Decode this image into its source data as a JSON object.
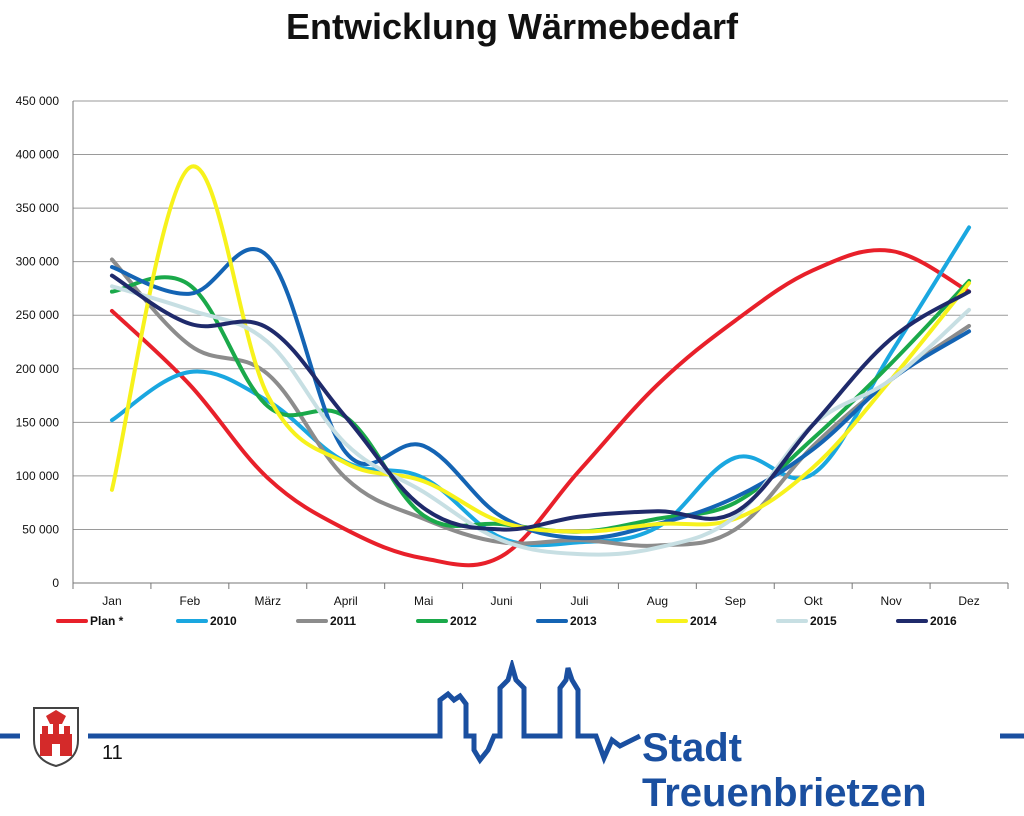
{
  "page": {
    "title": "Entwicklung Wärmebedarf",
    "page_number": "11",
    "brand": "Stadt Treuenbrietzen"
  },
  "colors": {
    "brand_blue": "#1a4fa0",
    "grid": "#9a9a9a"
  },
  "icons": {
    "logo": "coat-of-arms-icon",
    "skyline": "town-skyline-icon"
  },
  "chart_data": {
    "type": "line",
    "title": "",
    "xlabel": "",
    "ylabel": "",
    "ylim": [
      0,
      450000
    ],
    "yticks": [
      0,
      50000,
      100000,
      150000,
      200000,
      250000,
      300000,
      350000,
      400000,
      450000
    ],
    "ytick_labels": [
      "0",
      "50 000",
      "100 000",
      "150 000",
      "200 000",
      "250 000",
      "300 000",
      "350 000",
      "400 000",
      "450 000"
    ],
    "grid": true,
    "legend_position": "bottom",
    "categories": [
      "Jan",
      "Feb",
      "März",
      "April",
      "Mai",
      "Juni",
      "Juli",
      "Aug",
      "Sep",
      "Okt",
      "Nov",
      "Dez"
    ],
    "series": [
      {
        "name": "Plan *",
        "color": "#e8202a",
        "values": [
          254000,
          185000,
          98000,
          50000,
          23000,
          25000,
          105000,
          185000,
          245000,
          292000,
          310000,
          272000
        ]
      },
      {
        "name": "2010",
        "color": "#1aa7e0",
        "values": [
          152000,
          197000,
          170000,
          113000,
          98000,
          42000,
          38000,
          52000,
          117000,
          102000,
          215000,
          332000
        ]
      },
      {
        "name": "2011",
        "color": "#8c8c8c",
        "values": [
          302000,
          222000,
          195000,
          98000,
          60000,
          38000,
          40000,
          35000,
          50000,
          128000,
          190000,
          240000
        ]
      },
      {
        "name": "2012",
        "color": "#1aa94a",
        "values": [
          272000,
          278000,
          165000,
          155000,
          63000,
          55000,
          48000,
          60000,
          75000,
          135000,
          205000,
          282000
        ]
      },
      {
        "name": "2013",
        "color": "#1464b4",
        "values": [
          295000,
          270000,
          305000,
          122000,
          128000,
          62000,
          42000,
          55000,
          80000,
          125000,
          190000,
          235000
        ]
      },
      {
        "name": "2014",
        "color": "#f7f21c",
        "values": [
          87000,
          388000,
          175000,
          112000,
          95000,
          57000,
          48000,
          55000,
          60000,
          108000,
          190000,
          280000
        ]
      },
      {
        "name": "2015",
        "color": "#c7dfe3",
        "values": [
          277000,
          255000,
          225000,
          130000,
          85000,
          40000,
          27000,
          33000,
          62000,
          148000,
          190000,
          255000
        ]
      },
      {
        "name": "2016",
        "color": "#1f2a6b",
        "values": [
          287000,
          242000,
          238000,
          155000,
          70000,
          50000,
          62000,
          67000,
          66000,
          148000,
          228000,
          272000
        ]
      }
    ]
  }
}
